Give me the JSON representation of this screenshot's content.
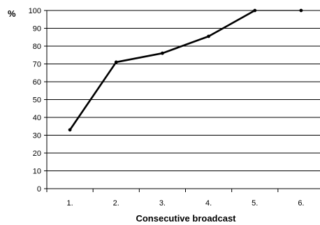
{
  "chart_data": {
    "type": "line",
    "categories": [
      "1.",
      "2.",
      "3.",
      "4.",
      "5.",
      "6."
    ],
    "series": [
      {
        "values": [
          33,
          71,
          76,
          85.5,
          100,
          100
        ]
      }
    ],
    "xlabel": "Consecutive broadcast",
    "ylabel": "%",
    "ylim": [
      0,
      100
    ],
    "yticks": [
      0,
      10,
      20,
      30,
      40,
      50,
      60,
      70,
      80,
      90,
      100
    ],
    "grid": true,
    "legend": "none",
    "line_color": "#000000",
    "grid_color": "#000000"
  }
}
